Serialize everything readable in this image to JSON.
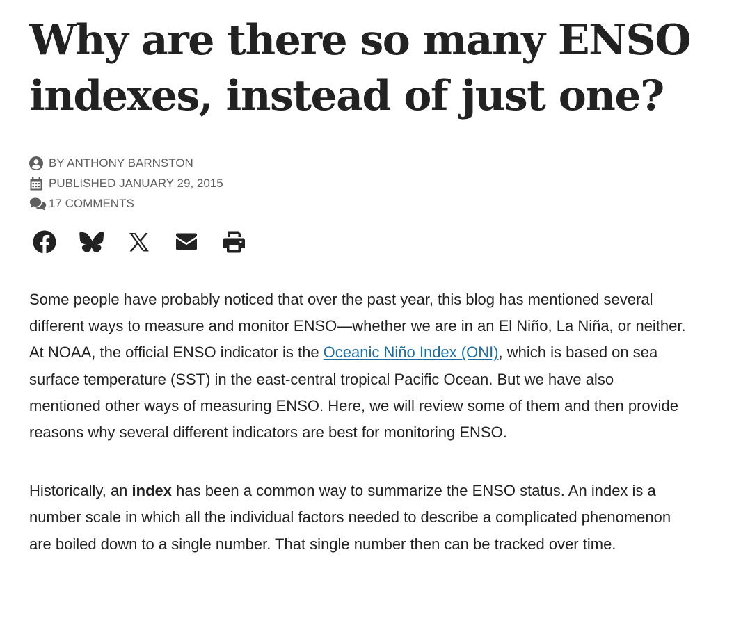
{
  "article": {
    "title": "Why are there so many ENSO indexes, instead of just one?",
    "meta": {
      "author": "BY ANTHONY BARNSTON",
      "author_icon": "user-circle-icon",
      "published": "PUBLISHED JANUARY 29, 2015",
      "published_icon": "calendar-icon",
      "comments": "17 COMMENTS",
      "comments_icon": "comments-icon"
    },
    "share": [
      {
        "name": "facebook-share-button",
        "icon": "facebook-icon"
      },
      {
        "name": "bluesky-share-button",
        "icon": "bluesky-icon"
      },
      {
        "name": "x-share-button",
        "icon": "x-icon"
      },
      {
        "name": "email-share-button",
        "icon": "envelope-icon"
      },
      {
        "name": "print-button",
        "icon": "printer-icon"
      }
    ],
    "paragraph1": {
      "before_link": "Some people have probably noticed that over the past year, this blog has mentioned several different ways to measure and monitor ENSO—whether we are in an El Niño, La Niña, or neither. At NOAA, the official ENSO indicator is the ",
      "link_text": "Oceanic Niño Index (ONI)",
      "after_link": ", which is based on sea surface temperature (SST) in the east-central tropical Pacific Ocean. But we have also mentioned other ways of measuring ENSO. Here, we will review some of them and then provide reasons why several different indicators are best for monitoring ENSO."
    },
    "paragraph2": {
      "before_bold": "Historically, an ",
      "bold_text": "index",
      "after_bold": " has been a common way to summarize the ENSO status. An index is a number scale in which all the individual factors needed to describe a complicated phenomenon are boiled down to a single number.  That single number then can be tracked over time."
    }
  }
}
